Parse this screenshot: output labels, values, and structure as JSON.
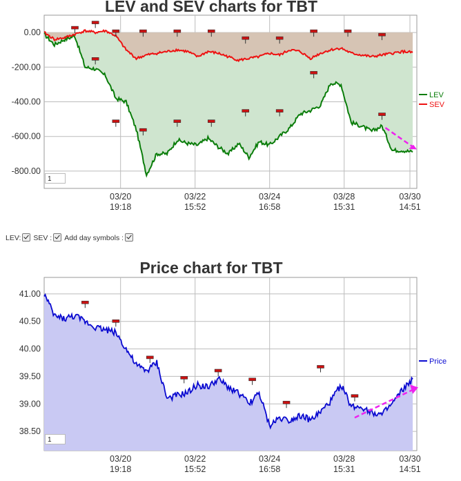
{
  "charts": [
    {
      "title": "LEV and SEV charts for TBT",
      "ylim": [
        -900,
        100
      ],
      "yticks": [
        "0.00",
        "-200.00",
        "-400.00",
        "-600.00",
        "-800.00"
      ],
      "ytick_values": [
        0,
        -200,
        -400,
        -600,
        -800
      ],
      "xticks": [
        [
          "03/20",
          "19:18"
        ],
        [
          "03/22",
          "15:52"
        ],
        [
          "03/24",
          "16:58"
        ],
        [
          "03/28",
          "15:31"
        ],
        [
          "03/30",
          "14:51"
        ]
      ],
      "zoom_value": "1"
    },
    {
      "title": "Price chart for TBT",
      "ylim": [
        38.15,
        41.3
      ],
      "yticks": [
        "41.00",
        "40.50",
        "40.00",
        "39.50",
        "39.00",
        "38.50"
      ],
      "ytick_values": [
        41.0,
        40.5,
        40.0,
        39.5,
        39.0,
        38.5
      ],
      "xticks": [
        [
          "03/20",
          "19:18"
        ],
        [
          "03/22",
          "15:52"
        ],
        [
          "03/24",
          "16:58"
        ],
        [
          "03/28",
          "15:31"
        ],
        [
          "03/30",
          "14:51"
        ]
      ],
      "zoom_value": "1"
    }
  ],
  "controls": {
    "lev_label": "LEV:",
    "sev_label": "SEV :",
    "symbols_label": "Add day symbols :"
  },
  "colors": {
    "lev": "#0a7d0a",
    "sev": "#ee1111",
    "price": "#0a0ad0",
    "lev_fill": "#cfe5cf",
    "sev_fill": "#d6c4b4",
    "price_fill": "#c9c9f3",
    "arrow": "#ee22ee",
    "marker": "#cc1111"
  },
  "chart_data": [
    {
      "type": "line",
      "title": "LEV and SEV charts for TBT",
      "xlabel": "",
      "ylabel": "",
      "ylim": [
        -900,
        100
      ],
      "x_ticks": [
        "03/20 19:18",
        "03/22 15:52",
        "03/24 16:58",
        "03/28 15:31",
        "03/30 14:51"
      ],
      "legend_position": "right",
      "grid": true,
      "series": [
        {
          "name": "LEV",
          "x": [
            0,
            3,
            6,
            9,
            12,
            15,
            18,
            21,
            24,
            27,
            30,
            33,
            36,
            39,
            42,
            45,
            48,
            51,
            54,
            57,
            60,
            63,
            66,
            69,
            72,
            75,
            78,
            81,
            84,
            87,
            90,
            93,
            96,
            99,
            102,
            105,
            108
          ],
          "values": [
            -10,
            -70,
            -40,
            -20,
            -200,
            -210,
            -250,
            -380,
            -400,
            -560,
            -820,
            -700,
            -700,
            -620,
            -640,
            -650,
            -610,
            -660,
            -700,
            -640,
            -720,
            -630,
            -650,
            -600,
            -550,
            -470,
            -450,
            -420,
            -290,
            -300,
            -520,
            -540,
            -570,
            -540,
            -680,
            -680,
            -690
          ]
        },
        {
          "name": "SEV",
          "x": [
            0,
            3,
            6,
            9,
            12,
            15,
            18,
            21,
            24,
            27,
            30,
            33,
            36,
            39,
            42,
            45,
            48,
            51,
            54,
            57,
            60,
            63,
            66,
            69,
            72,
            75,
            78,
            81,
            84,
            87,
            90,
            93,
            96,
            99,
            102,
            105,
            108
          ],
          "values": [
            0,
            -40,
            -30,
            -10,
            10,
            0,
            10,
            -20,
            -100,
            -150,
            -130,
            -120,
            -110,
            -100,
            -110,
            -140,
            -110,
            -120,
            -140,
            -160,
            -150,
            -140,
            -120,
            -130,
            -100,
            -110,
            -150,
            -120,
            -100,
            -90,
            -120,
            -130,
            -140,
            -130,
            -120,
            -110,
            -115
          ]
        }
      ],
      "annotations": [
        "day markers",
        "trend arrow on LEV"
      ]
    },
    {
      "type": "area",
      "title": "Price chart for TBT",
      "xlabel": "",
      "ylabel": "",
      "ylim": [
        38.15,
        41.3
      ],
      "x_ticks": [
        "03/20 19:18",
        "03/22 15:52",
        "03/24 16:58",
        "03/28 15:31",
        "03/30 14:51"
      ],
      "legend_position": "right",
      "grid": true,
      "series": [
        {
          "name": "Price",
          "x": [
            0,
            3,
            6,
            9,
            12,
            15,
            18,
            21,
            24,
            27,
            30,
            33,
            36,
            39,
            42,
            45,
            48,
            51,
            54,
            57,
            60,
            63,
            66,
            69,
            72,
            75,
            78,
            81,
            84,
            87,
            90,
            93,
            96,
            99,
            102,
            105,
            108
          ],
          "values": [
            41.0,
            40.6,
            40.55,
            40.6,
            40.5,
            40.4,
            40.35,
            40.3,
            40.0,
            39.7,
            39.6,
            39.75,
            39.1,
            39.15,
            39.2,
            39.35,
            39.3,
            39.45,
            39.3,
            39.2,
            39.0,
            39.2,
            38.6,
            38.75,
            38.7,
            38.8,
            38.7,
            38.85,
            39.05,
            39.35,
            38.95,
            38.95,
            38.85,
            38.8,
            39.0,
            39.25,
            39.45
          ]
        }
      ],
      "annotations": [
        "day markers",
        "trend arrow on price"
      ]
    }
  ]
}
